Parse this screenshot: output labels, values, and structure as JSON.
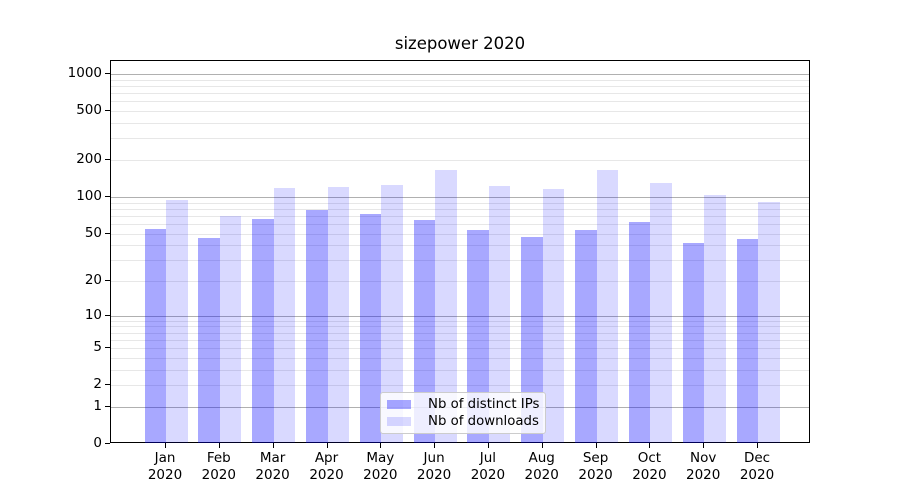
{
  "figure": {
    "title": "sizepower 2020"
  },
  "chart_data": {
    "type": "bar",
    "title": "sizepower 2020",
    "categories": [
      "Jan 2020",
      "Feb 2020",
      "Mar 2020",
      "Apr 2020",
      "May 2020",
      "Jun 2020",
      "Jul 2020",
      "Aug 2020",
      "Sep 2020",
      "Oct 2020",
      "Nov 2020",
      "Dec 2020"
    ],
    "series": [
      {
        "name": "Nb of distinct IPs",
        "color": "rgba(0,0,255,0.34)",
        "values": [
          54,
          46,
          66,
          78,
          72,
          65,
          53,
          47,
          53,
          62,
          42,
          45
        ]
      },
      {
        "name": "Nb of downloads",
        "color": "rgba(0,0,255,0.15)",
        "values": [
          95,
          70,
          118,
          121,
          125,
          166,
          123,
          116,
          166,
          131,
          104,
          91
        ]
      }
    ],
    "xlabel": "",
    "ylabel": "",
    "yscale": "log1p",
    "y_ticks": [
      0,
      1,
      2,
      5,
      10,
      20,
      50,
      100,
      200,
      500,
      1000
    ],
    "ylim": [
      0,
      1275
    ],
    "grid": "both",
    "legend_position": "lower center"
  },
  "legend": {
    "items": [
      {
        "label": "Nb of distinct IPs"
      },
      {
        "label": "Nb of downloads"
      }
    ]
  },
  "colors": {
    "grid_major": "#b0b0b0",
    "grid_minor": "#e7e7e7",
    "spine": "#000000",
    "bar_dark": "rgba(0,0,255,0.34)",
    "bar_light": "rgba(0,0,255,0.15)",
    "legend_border": "#cccccc"
  }
}
